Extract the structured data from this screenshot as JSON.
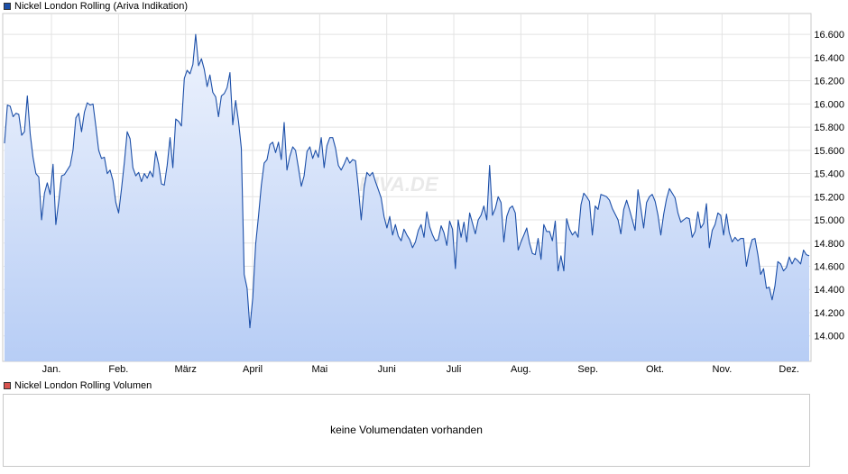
{
  "legend": {
    "price_label": "Nickel London Rolling (Ariva Indikation)",
    "price_color": "#1c4fa8",
    "volume_label": "Nickel London Rolling Volumen",
    "volume_color": "#d9534f"
  },
  "watermark": "ARIVA.DE",
  "volume_panel": {
    "message": "keine Volumendaten vorhanden"
  },
  "chart_data": {
    "type": "area",
    "title": "Nickel London Rolling (Ariva Indikation)",
    "xlabel": "",
    "ylabel": "",
    "x_ticks": [
      "Jan.",
      "Feb.",
      "März",
      "April",
      "Mai",
      "Juni",
      "Juli",
      "Aug.",
      "Sep.",
      "Okt.",
      "Nov.",
      "Dez."
    ],
    "y_ticks": [
      "14.000",
      "14.200",
      "14.400",
      "14.600",
      "14.800",
      "15.000",
      "15.200",
      "15.400",
      "15.600",
      "15.800",
      "16.000",
      "16.200",
      "16.400",
      "16.600"
    ],
    "y_tick_values": [
      14000,
      14200,
      14400,
      14600,
      14800,
      15000,
      15200,
      15400,
      15600,
      15800,
      16000,
      16200,
      16400,
      16600
    ],
    "ylim": [
      13780,
      16780
    ],
    "grid": true,
    "line_color": "#1c4fa8",
    "fill_top_color": "#eef3fd",
    "fill_bottom_color": "#b7cdf5",
    "series": [
      {
        "name": "Nickel London Rolling (Ariva Indikation)",
        "values": [
          15660,
          15990,
          15980,
          15890,
          15920,
          15910,
          15730,
          15760,
          16070,
          15740,
          15540,
          15400,
          15370,
          15000,
          15230,
          15320,
          15220,
          15480,
          14960,
          15160,
          15380,
          15390,
          15430,
          15470,
          15600,
          15880,
          15920,
          15760,
          15930,
          16010,
          15990,
          16000,
          15810,
          15600,
          15530,
          15540,
          15400,
          15430,
          15340,
          15150,
          15060,
          15270,
          15500,
          15760,
          15700,
          15450,
          15380,
          15410,
          15330,
          15400,
          15360,
          15420,
          15370,
          15590,
          15480,
          15310,
          15300,
          15470,
          15710,
          15450,
          15870,
          15850,
          15810,
          16220,
          16290,
          16260,
          16340,
          16600,
          16330,
          16390,
          16300,
          16150,
          16250,
          16100,
          16060,
          15890,
          16070,
          16090,
          16140,
          16270,
          15820,
          16030,
          15850,
          15620,
          14530,
          14410,
          14070,
          14330,
          14790,
          15030,
          15300,
          15490,
          15520,
          15650,
          15670,
          15580,
          15670,
          15520,
          15840,
          15430,
          15550,
          15630,
          15600,
          15450,
          15290,
          15380,
          15590,
          15630,
          15530,
          15600,
          15540,
          15710,
          15450,
          15640,
          15710,
          15710,
          15620,
          15470,
          15430,
          15480,
          15540,
          15490,
          15520,
          15510,
          15280,
          15000,
          15280,
          15410,
          15380,
          15410,
          15330,
          15260,
          15190,
          15030,
          14930,
          15030,
          14870,
          14960,
          14860,
          14820,
          14920,
          14870,
          14830,
          14760,
          14810,
          14910,
          14960,
          14850,
          15070,
          14940,
          14870,
          14820,
          14830,
          14950,
          14890,
          14780,
          14990,
          14920,
          14580,
          15000,
          14850,
          14980,
          14810,
          15060,
          14970,
          14880,
          15000,
          15040,
          15120,
          15000,
          15470,
          15040,
          15100,
          15200,
          15150,
          14810,
          15030,
          15100,
          15120,
          15060,
          14740,
          14810,
          14870,
          14930,
          14800,
          14710,
          14700,
          14840,
          14660,
          14960,
          14900,
          14900,
          14820,
          14990,
          14560,
          14690,
          14560,
          15010,
          14920,
          14870,
          14900,
          14850,
          15130,
          15230,
          15200,
          15160,
          14870,
          15120,
          15090,
          15220,
          15210,
          15200,
          15170,
          15100,
          15050,
          15000,
          14880,
          15090,
          15170,
          15090,
          15000,
          14910,
          15260,
          15100,
          14930,
          15150,
          15200,
          15220,
          15160,
          15040,
          14870,
          15050,
          15180,
          15270,
          15230,
          15190,
          15060,
          14980,
          15000,
          15020,
          15010,
          14850,
          14900,
          15070,
          14930,
          14970,
          15140,
          14760,
          14910,
          14960,
          15060,
          15040,
          14870,
          15050,
          14890,
          14810,
          14850,
          14820,
          14840,
          14840,
          14600,
          14740,
          14830,
          14840,
          14700,
          14530,
          14580,
          14410,
          14420,
          14310,
          14430,
          14640,
          14620,
          14560,
          14590,
          14680,
          14620,
          14670,
          14650,
          14620,
          14740,
          14700,
          14690
        ]
      }
    ]
  }
}
